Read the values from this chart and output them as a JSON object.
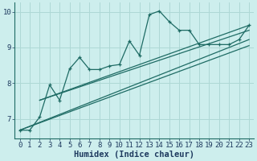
{
  "xlabel": "Humidex (Indice chaleur)",
  "background_color": "#cdeeed",
  "grid_color": "#aed8d5",
  "line_color": "#1e6b64",
  "xlim": [
    -0.5,
    23.5
  ],
  "ylim": [
    6.45,
    10.25
  ],
  "yticks": [
    7,
    8,
    9,
    10
  ],
  "xticks": [
    0,
    1,
    2,
    3,
    4,
    5,
    6,
    7,
    8,
    9,
    10,
    11,
    12,
    13,
    14,
    15,
    16,
    17,
    18,
    19,
    20,
    21,
    22,
    23
  ],
  "main_x": [
    0,
    1,
    2,
    3,
    4,
    5,
    6,
    7,
    8,
    9,
    10,
    11,
    12,
    13,
    14,
    15,
    16,
    17,
    18,
    19,
    20,
    21,
    22,
    23
  ],
  "main_y": [
    6.68,
    6.68,
    7.05,
    7.95,
    7.52,
    8.4,
    8.72,
    8.38,
    8.38,
    8.48,
    8.52,
    9.18,
    8.78,
    9.92,
    10.02,
    9.72,
    9.48,
    9.48,
    9.08,
    9.08,
    9.08,
    9.08,
    9.22,
    9.62
  ],
  "trend1_x": [
    0,
    23
  ],
  "trend1_y": [
    6.68,
    9.05
  ],
  "trend2_x": [
    0,
    23
  ],
  "trend2_y": [
    6.68,
    9.22
  ],
  "trend3_x": [
    2,
    23
  ],
  "trend3_y": [
    7.52,
    9.48
  ],
  "trend4_x": [
    2,
    23
  ],
  "trend4_y": [
    7.52,
    9.62
  ],
  "font_color": "#1e3a5f",
  "xlabel_fontsize": 7.5,
  "tick_fontsize": 6.5
}
